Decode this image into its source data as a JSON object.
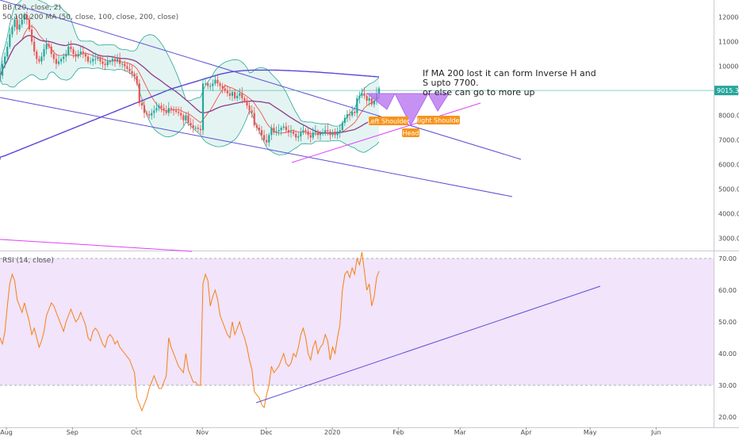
{
  "indicators": {
    "bb_label": "BB (20, close, 2)",
    "ma_label": "50,100,200 MA (50, close, 100, close, 200, close)",
    "rsi_label": "RSI (14, close)"
  },
  "annotation_text": "If MA 200 lost it can form Inverse H and\nS upto 7700.\nor else can go to more up",
  "pattern_labels": {
    "left_shoulder": "Left Shoulder",
    "head": "Head",
    "right_shoulder": "Right Shoulder"
  },
  "colors": {
    "up": "#26a69a",
    "down": "#ef5350",
    "bb_band": "#26a69a",
    "bb_fill": "#b2dfdb",
    "ma_50": "#ef5350",
    "ma_100": "#8e3b8e",
    "ma_200": "#5c45d6",
    "trendline": "#5b4fd4",
    "magenta_line": "#e040fb",
    "rsi_line": "#f57f17",
    "rsi_band": "#f1e4fb",
    "pattern_fill": "#b46cf0",
    "label_bg": "#f7941d",
    "price_tag_bg": "#26a69a"
  },
  "chart_data": {
    "type": "candlestick",
    "last_price_label": "9015.3",
    "last_price": 9015.3,
    "y_ticks": [
      "12000.0",
      "11000.0",
      "10000.0",
      "9000.0",
      "8000.0",
      "7000.0",
      "6000.0",
      "5000.0",
      "4000.0",
      "3000.0"
    ],
    "y_tick_values": [
      12000,
      11000,
      10000,
      9000,
      8000,
      7000,
      6000,
      5000,
      4000,
      3000
    ],
    "ylim": [
      2500,
      12700
    ],
    "rsi_ticks": [
      "70.00",
      "60.00",
      "50.00",
      "40.00",
      "30.00",
      "20.00"
    ],
    "rsi_tick_values": [
      70,
      60,
      50,
      40,
      30,
      20
    ],
    "rsi_ylim": [
      17,
      72
    ],
    "rsi_bands": [
      30,
      70
    ],
    "x_ticks": [
      "Aug",
      "Sep",
      "Oct",
      "Nov",
      "Dec",
      "2020",
      "Feb",
      "Mar",
      "Apr",
      "May",
      "Jun"
    ],
    "x_tick_dates": [
      "2019-08-01",
      "2019-09-01",
      "2019-10-01",
      "2019-11-01",
      "2019-12-01",
      "2020-01-01",
      "2020-02-01",
      "2020-03-01",
      "2020-04-01",
      "2020-05-01",
      "2020-06-01"
    ],
    "x_range": [
      "2019-07-29",
      "2020-06-28"
    ],
    "closes": [
      9620,
      10100,
      10400,
      10800,
      11300,
      11600,
      11900,
      11500,
      11700,
      11900,
      12100,
      11900,
      11500,
      11000,
      10600,
      10300,
      10200,
      10400,
      10700,
      10900,
      10800,
      10500,
      10300,
      10100,
      10200,
      10300,
      10400,
      10500,
      10800,
      10700,
      10500,
      10400,
      10500,
      10600,
      10500,
      10400,
      10200,
      10200,
      10300,
      10300,
      10350,
      10200,
      10100,
      10050,
      10200,
      10200,
      10300,
      10200,
      10300,
      10100,
      10100,
      10000,
      9900,
      9800,
      9700,
      9600,
      9300,
      8500,
      8400,
      8100,
      8050,
      8000,
      8100,
      8200,
      8300,
      8400,
      8300,
      8200,
      8100,
      8300,
      8250,
      8200,
      8150,
      8100,
      8000,
      7800,
      8000,
      7700,
      7600,
      7500,
      7500,
      7450,
      7400,
      9300,
      9300,
      9200,
      9200,
      9300,
      9450,
      9300,
      9200,
      9100,
      9000,
      8900,
      8800,
      8950,
      8700,
      8800,
      8900,
      8700,
      8600,
      8400,
      8200,
      8100,
      7600,
      7500,
      7400,
      7200,
      7000,
      6900,
      7200,
      7500,
      7300,
      7350,
      7400,
      7500,
      7550,
      7400,
      7300,
      7350,
      7250,
      7100,
      7150,
      7300,
      7400,
      7350,
      7200,
      7100,
      7300,
      7350,
      7200,
      7250,
      7300,
      7400,
      7350,
      7200,
      7300,
      7200,
      7300,
      7400,
      7700,
      7900,
      8050,
      8000,
      8150,
      8100,
      8700,
      8800,
      8900,
      8800,
      8600,
      8700,
      8450,
      8600,
      8900,
      9100
    ],
    "rsi": [
      45,
      43,
      47,
      55,
      62,
      65,
      63,
      57,
      55,
      53,
      56,
      53,
      50,
      46,
      48,
      45,
      42,
      44,
      47,
      52,
      54,
      56,
      55,
      53,
      51,
      49,
      47,
      50,
      52,
      54,
      52,
      50,
      51,
      53,
      51,
      49,
      45,
      44,
      47,
      48,
      47,
      45,
      43,
      42,
      45,
      46,
      45,
      43,
      44,
      42,
      41,
      40,
      39,
      38,
      36,
      34,
      26,
      24,
      22,
      24,
      26,
      29,
      31,
      33,
      31,
      29,
      29,
      31,
      33,
      45,
      42,
      40,
      38,
      36,
      35,
      34,
      40,
      35,
      33,
      31,
      31,
      30,
      30,
      62,
      65,
      63,
      55,
      58,
      60,
      57,
      52,
      50,
      48,
      46,
      45,
      50,
      46,
      48,
      50,
      47,
      45,
      42,
      38,
      35,
      28,
      27,
      26,
      24,
      23,
      27,
      30,
      36,
      34,
      35,
      36,
      38,
      40,
      37,
      36,
      37,
      40,
      39,
      42,
      46,
      48,
      45,
      40,
      38,
      42,
      44,
      40,
      42,
      43,
      46,
      44,
      38,
      42,
      40,
      45,
      49,
      60,
      65,
      66,
      64,
      67,
      65,
      70,
      68,
      72,
      66,
      60,
      62,
      55,
      58,
      64,
      66
    ],
    "ma200": [
      6300,
      6330,
      6360,
      6400,
      6440,
      6480,
      6520,
      6560,
      6600,
      6640,
      6680,
      6720,
      6760,
      6800,
      6840,
      6880,
      6920,
      6960,
      7000,
      7040,
      7080,
      7120,
      7160,
      7200,
      7240,
      7280,
      7320,
      7360,
      7400,
      7440,
      7480,
      7520,
      7560,
      7600,
      7640,
      7680,
      7720,
      7760,
      7800,
      7840,
      7880,
      7920,
      7960,
      8000,
      8040,
      8080,
      8120,
      8160,
      8200,
      8240,
      8280,
      8320,
      8360,
      8400,
      8440,
      8480,
      8520,
      8560,
      8600,
      8640,
      8680,
      8720,
      8760,
      8800,
      8840,
      8880,
      8920,
      8960,
      9000,
      9040,
      9080,
      9110,
      9140,
      9170,
      9200,
      9230,
      9260,
      9290,
      9320,
      9350,
      9380,
      9410,
      9440,
      9470,
      9500,
      9530,
      9560,
      9590,
      9620,
      9650,
      9680,
      9700,
      9720,
      9740,
      9760,
      9780,
      9790,
      9800,
      9810,
      9820,
      9830,
      9835,
      9840,
      9842,
      9845,
      9846,
      9847,
      9848,
      9848,
      9848,
      9847,
      9846,
      9845,
      9843,
      9840,
      9837,
      9834,
      9830,
      9826,
      9822,
      9818,
      9813,
      9808,
      9803,
      9798,
      9792,
      9786,
      9780,
      9774,
      9768,
      9762,
      9755,
      9748,
      9741,
      9734,
      9727,
      9720,
      9712,
      9704,
      9696,
      9688,
      9680,
      9672,
      9664,
      9656,
      9648,
      9640,
      9632,
      9624,
      9616,
      9608,
      9600,
      9592,
      9584,
      9576,
      9568
    ]
  }
}
